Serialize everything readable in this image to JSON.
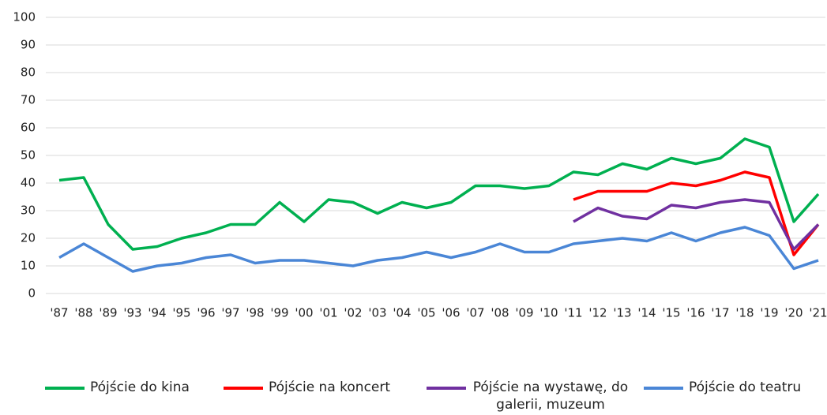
{
  "chart_data": {
    "type": "line",
    "categories": [
      "'87",
      "'88",
      "'89",
      "'93",
      "'94",
      "'95",
      "'96",
      "'97",
      "'98",
      "'99",
      "'00",
      "'01",
      "'02",
      "'03",
      "'04",
      "'05",
      "'06",
      "'07",
      "'08",
      "'09",
      "'10",
      "'11",
      "'12",
      "'13",
      "'14",
      "'15",
      "'16",
      "'17",
      "'18",
      "'19",
      "'20",
      "'21"
    ],
    "series": [
      {
        "name": "Pójście do kina",
        "color": "#00b050",
        "values": [
          41,
          42,
          25,
          16,
          17,
          20,
          22,
          25,
          25,
          33,
          26,
          34,
          33,
          29,
          33,
          31,
          33,
          39,
          39,
          38,
          39,
          44,
          43,
          47,
          45,
          49,
          47,
          49,
          56,
          53,
          26,
          36
        ]
      },
      {
        "name": "Pójście na koncert",
        "color": "#ff0000",
        "values": [
          null,
          null,
          null,
          null,
          null,
          null,
          null,
          null,
          null,
          null,
          null,
          null,
          null,
          null,
          null,
          null,
          null,
          null,
          null,
          null,
          null,
          34,
          37,
          37,
          37,
          40,
          39,
          41,
          44,
          42,
          14,
          25
        ]
      },
      {
        "name": "Pójście na wystawę, do galerii, muzeum",
        "color": "#7030a0",
        "values": [
          null,
          null,
          null,
          null,
          null,
          null,
          null,
          null,
          null,
          null,
          null,
          null,
          null,
          null,
          null,
          null,
          null,
          null,
          null,
          null,
          null,
          26,
          31,
          28,
          27,
          32,
          31,
          33,
          34,
          33,
          16,
          25
        ]
      },
      {
        "name": "Pójście do teatru",
        "color": "#4a86d6",
        "values": [
          13,
          18,
          13,
          8,
          10,
          11,
          13,
          14,
          11,
          12,
          12,
          11,
          10,
          12,
          13,
          15,
          13,
          15,
          18,
          15,
          15,
          18,
          19,
          20,
          19,
          22,
          19,
          22,
          24,
          21,
          9,
          12
        ]
      }
    ],
    "ylim": [
      0,
      100
    ],
    "yticks": [
      0,
      10,
      20,
      30,
      40,
      50,
      60,
      70,
      80,
      90,
      100
    ],
    "grid": true,
    "legend": "bottom"
  }
}
